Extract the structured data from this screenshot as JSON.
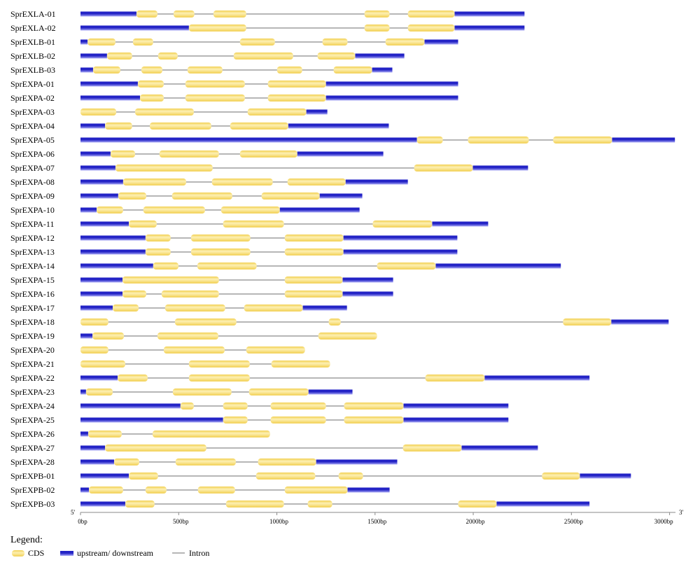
{
  "colors": {
    "cds": "#f2d054",
    "cds_highlight": "#fdf0b2",
    "utr": "#2323c6",
    "utr_highlight": "#a9a9f6",
    "intron": "#8a8a8a",
    "axis": "#8a8a8a"
  },
  "axis": {
    "five_prime": "5'",
    "three_prime": "3'",
    "range_bp": [
      0,
      3030
    ],
    "ticks": [
      {
        "value": 0,
        "label": "0bp"
      },
      {
        "value": 500,
        "label": "500bp"
      },
      {
        "value": 1000,
        "label": "1000bp"
      },
      {
        "value": 1500,
        "label": "1500bp"
      },
      {
        "value": 2000,
        "label": "2000bp"
      },
      {
        "value": 2500,
        "label": "2500bp"
      },
      {
        "value": 3000,
        "label": "3000bp"
      }
    ]
  },
  "legend": {
    "title": "Legend:",
    "cds_label": "CDS",
    "utr_label": "upstream/ downstream",
    "intron_label": "Intron"
  },
  "genes": [
    {
      "name": "SprEXLA-01",
      "length_bp": 2261,
      "utr": [
        [
          0,
          285
        ],
        [
          1905,
          2261
        ]
      ],
      "cds": [
        [
          285,
          392
        ],
        [
          474,
          580
        ],
        [
          677,
          844
        ],
        [
          1446,
          1574
        ],
        [
          1667,
          1905
        ]
      ]
    },
    {
      "name": "SprEXLA-02",
      "length_bp": 2261,
      "utr": [
        [
          0,
          552
        ],
        [
          1905,
          2261
        ]
      ],
      "cds": [
        [
          552,
          844
        ],
        [
          1446,
          1574
        ],
        [
          1667,
          1905
        ]
      ]
    },
    {
      "name": "SprEXLB-01",
      "length_bp": 1923,
      "utr": [
        [
          0,
          36
        ],
        [
          1752,
          1923
        ]
      ],
      "cds": [
        [
          36,
          178
        ],
        [
          267,
          370
        ],
        [
          812,
          990
        ],
        [
          1232,
          1360
        ],
        [
          1553,
          1752
        ]
      ]
    },
    {
      "name": "SprEXLB-02",
      "length_bp": 1649,
      "utr": [
        [
          0,
          135
        ],
        [
          1399,
          1649
        ]
      ],
      "cds": [
        [
          135,
          263
        ],
        [
          395,
          495
        ],
        [
          780,
          1083
        ],
        [
          1207,
          1399
        ]
      ]
    },
    {
      "name": "SprEXLB-03",
      "length_bp": 1588,
      "utr": [
        [
          0,
          64
        ],
        [
          1485,
          1588
        ]
      ],
      "cds": [
        [
          64,
          203
        ],
        [
          310,
          417
        ],
        [
          545,
          723
        ],
        [
          1001,
          1129
        ],
        [
          1289,
          1485
        ]
      ]
    },
    {
      "name": "SprEXPA-01",
      "length_bp": 1923,
      "utr": [
        [
          0,
          292
        ],
        [
          1250,
          1923
        ]
      ],
      "cds": [
        [
          292,
          424
        ],
        [
          534,
          837
        ],
        [
          954,
          1250
        ]
      ]
    },
    {
      "name": "SprEXPA-02",
      "length_bp": 1923,
      "utr": [
        [
          0,
          303
        ],
        [
          1250,
          1923
        ]
      ],
      "cds": [
        [
          303,
          424
        ],
        [
          534,
          837
        ],
        [
          954,
          1250
        ]
      ]
    },
    {
      "name": "SprEXPA-03",
      "length_bp": 1257,
      "utr": [
        [
          1150,
          1257
        ]
      ],
      "cds": [
        [
          0,
          182
        ],
        [
          278,
          577
        ],
        [
          851,
          1150
        ]
      ]
    },
    {
      "name": "SprEXPA-04",
      "length_bp": 1570,
      "utr": [
        [
          0,
          125
        ],
        [
          1058,
          1570
        ]
      ],
      "cds": [
        [
          125,
          263
        ],
        [
          353,
          666
        ],
        [
          762,
          1058
        ]
      ]
    },
    {
      "name": "SprEXPA-05",
      "length_bp": 3027,
      "utr": [
        [
          0,
          1713
        ],
        [
          2707,
          3027
        ]
      ],
      "cds": [
        [
          1713,
          1845
        ],
        [
          1973,
          2283
        ],
        [
          2407,
          2707
        ]
      ]
    },
    {
      "name": "SprEXPA-06",
      "length_bp": 1542,
      "utr": [
        [
          0,
          153
        ],
        [
          1104,
          1542
        ]
      ],
      "cds": [
        [
          153,
          278
        ],
        [
          402,
          705
        ],
        [
          812,
          1104
        ]
      ]
    },
    {
      "name": "SprEXPA-07",
      "length_bp": 2279,
      "utr": [
        [
          0,
          178
        ],
        [
          1998,
          2279
        ]
      ],
      "cds": [
        [
          178,
          673
        ],
        [
          1699,
          1998
        ]
      ]
    },
    {
      "name": "SprEXPA-08",
      "length_bp": 1667,
      "utr": [
        [
          0,
          217
        ],
        [
          1350,
          1667
        ]
      ],
      "cds": [
        [
          217,
          538
        ],
        [
          669,
          979
        ],
        [
          1054,
          1350
        ]
      ]
    },
    {
      "name": "SprEXPA-09",
      "length_bp": 1435,
      "utr": [
        [
          0,
          192
        ],
        [
          1218,
          1435
        ]
      ],
      "cds": [
        [
          192,
          335
        ],
        [
          466,
          773
        ],
        [
          922,
          1218
        ]
      ]
    },
    {
      "name": "SprEXPA-10",
      "length_bp": 1421,
      "utr": [
        [
          0,
          82
        ],
        [
          1015,
          1421
        ]
      ],
      "cds": [
        [
          82,
          217
        ],
        [
          320,
          634
        ],
        [
          716,
          1015
        ]
      ]
    },
    {
      "name": "SprEXPA-11",
      "length_bp": 2076,
      "utr": [
        [
          0,
          246
        ],
        [
          1791,
          2076
        ]
      ],
      "cds": [
        [
          246,
          388
        ],
        [
          726,
          1036
        ],
        [
          1488,
          1791
        ]
      ]
    },
    {
      "name": "SprEXPA-12",
      "length_bp": 1919,
      "utr": [
        [
          0,
          331
        ],
        [
          1339,
          1919
        ]
      ],
      "cds": [
        [
          331,
          459
        ],
        [
          563,
          865
        ],
        [
          1040,
          1339
        ]
      ]
    },
    {
      "name": "SprEXPA-13",
      "length_bp": 1919,
      "utr": [
        [
          0,
          331
        ],
        [
          1339,
          1919
        ]
      ],
      "cds": [
        [
          331,
          459
        ],
        [
          563,
          865
        ],
        [
          1040,
          1339
        ]
      ]
    },
    {
      "name": "SprEXPA-14",
      "length_bp": 2446,
      "utr": [
        [
          0,
          370
        ],
        [
          1809,
          2446
        ]
      ],
      "cds": [
        [
          370,
          499
        ],
        [
          595,
          897
        ],
        [
          1510,
          1809
        ]
      ]
    },
    {
      "name": "SprEXPA-15",
      "length_bp": 1592,
      "utr": [
        [
          0,
          214
        ],
        [
          1335,
          1592
        ]
      ],
      "cds": [
        [
          214,
          705
        ],
        [
          1040,
          1335
        ]
      ]
    },
    {
      "name": "SprEXPA-16",
      "length_bp": 1592,
      "utr": [
        [
          0,
          214
        ],
        [
          1335,
          1592
        ]
      ],
      "cds": [
        [
          214,
          335
        ],
        [
          413,
          705
        ],
        [
          1040,
          1335
        ]
      ]
    },
    {
      "name": "SprEXPA-17",
      "length_bp": 1357,
      "utr": [
        [
          0,
          164
        ],
        [
          1132,
          1357
        ]
      ],
      "cds": [
        [
          164,
          296
        ],
        [
          431,
          737
        ],
        [
          833,
          1132
        ]
      ]
    },
    {
      "name": "SprEXPA-18",
      "length_bp": 2995,
      "utr": [
        [
          2703,
          2995
        ]
      ],
      "cds": [
        [
          0,
          142
        ],
        [
          481,
          794
        ],
        [
          1264,
          1325
        ],
        [
          2457,
          2703
        ]
      ]
    },
    {
      "name": "SprEXPA-19",
      "length_bp": 1510,
      "utr": [
        [
          0,
          61
        ]
      ],
      "cds": [
        [
          61,
          221
        ],
        [
          392,
          702
        ],
        [
          1211,
          1510
        ]
      ]
    },
    {
      "name": "SprEXPA-20",
      "length_bp": 1143,
      "utr": [],
      "cds": [
        [
          0,
          142
        ],
        [
          424,
          734
        ],
        [
          844,
          1143
        ]
      ]
    },
    {
      "name": "SprEXPA-21",
      "length_bp": 1271,
      "utr": [],
      "cds": [
        [
          0,
          228
        ],
        [
          552,
          862
        ],
        [
          972,
          1271
        ]
      ]
    },
    {
      "name": "SprEXPA-22",
      "length_bp": 2592,
      "utr": [
        [
          0,
          189
        ],
        [
          2058,
          2592
        ]
      ],
      "cds": [
        [
          189,
          342
        ],
        [
          552,
          862
        ],
        [
          1756,
          2058
        ]
      ]
    },
    {
      "name": "SprEXPA-23",
      "length_bp": 1385,
      "utr": [
        [
          0,
          28
        ],
        [
          1161,
          1385
        ]
      ],
      "cds": [
        [
          28,
          164
        ],
        [
          470,
          769
        ],
        [
          858,
          1161
        ]
      ]
    },
    {
      "name": "SprEXPA-24",
      "length_bp": 2179,
      "utr": [
        [
          0,
          509
        ],
        [
          1645,
          2179
        ]
      ],
      "cds": [
        [
          509,
          577
        ],
        [
          726,
          851
        ],
        [
          968,
          1250
        ],
        [
          1342,
          1645
        ]
      ]
    },
    {
      "name": "SprEXPA-25",
      "length_bp": 2179,
      "utr": [
        [
          0,
          726
        ],
        [
          1645,
          2179
        ]
      ],
      "cds": [
        [
          726,
          851
        ],
        [
          968,
          1250
        ],
        [
          1342,
          1645
        ]
      ]
    },
    {
      "name": "SprEXPA-26",
      "length_bp": 965,
      "utr": [
        [
          0,
          39
        ]
      ],
      "cds": [
        [
          39,
          210
        ],
        [
          367,
          965
        ]
      ]
    },
    {
      "name": "SprEXPA-27",
      "length_bp": 2329,
      "utr": [
        [
          0,
          125
        ],
        [
          1941,
          2329
        ]
      ],
      "cds": [
        [
          125,
          641
        ],
        [
          1642,
          1941
        ]
      ]
    },
    {
      "name": "SprEXPA-28",
      "length_bp": 1613,
      "utr": [
        [
          0,
          171
        ],
        [
          1200,
          1613
        ]
      ],
      "cds": [
        [
          171,
          299
        ],
        [
          484,
          791
        ],
        [
          904,
          1200
        ]
      ]
    },
    {
      "name": "SprEXPB-01",
      "length_bp": 2803,
      "utr": [
        [
          0,
          246
        ],
        [
          2543,
          2803
        ]
      ],
      "cds": [
        [
          246,
          395
        ],
        [
          894,
          1196
        ],
        [
          1314,
          1439
        ],
        [
          2350,
          2543
        ]
      ]
    },
    {
      "name": "SprEXPB-02",
      "length_bp": 1574,
      "utr": [
        [
          0,
          43
        ],
        [
          1360,
          1574
        ]
      ],
      "cds": [
        [
          43,
          217
        ],
        [
          331,
          438
        ],
        [
          598,
          787
        ],
        [
          1040,
          1360
        ]
      ]
    },
    {
      "name": "SprEXPB-03",
      "length_bp": 2592,
      "utr": [
        [
          0,
          228
        ],
        [
          2119,
          2592
        ]
      ],
      "cds": [
        [
          228,
          377
        ],
        [
          741,
          1036
        ],
        [
          1157,
          1282
        ],
        [
          1923,
          2119
        ]
      ]
    }
  ]
}
